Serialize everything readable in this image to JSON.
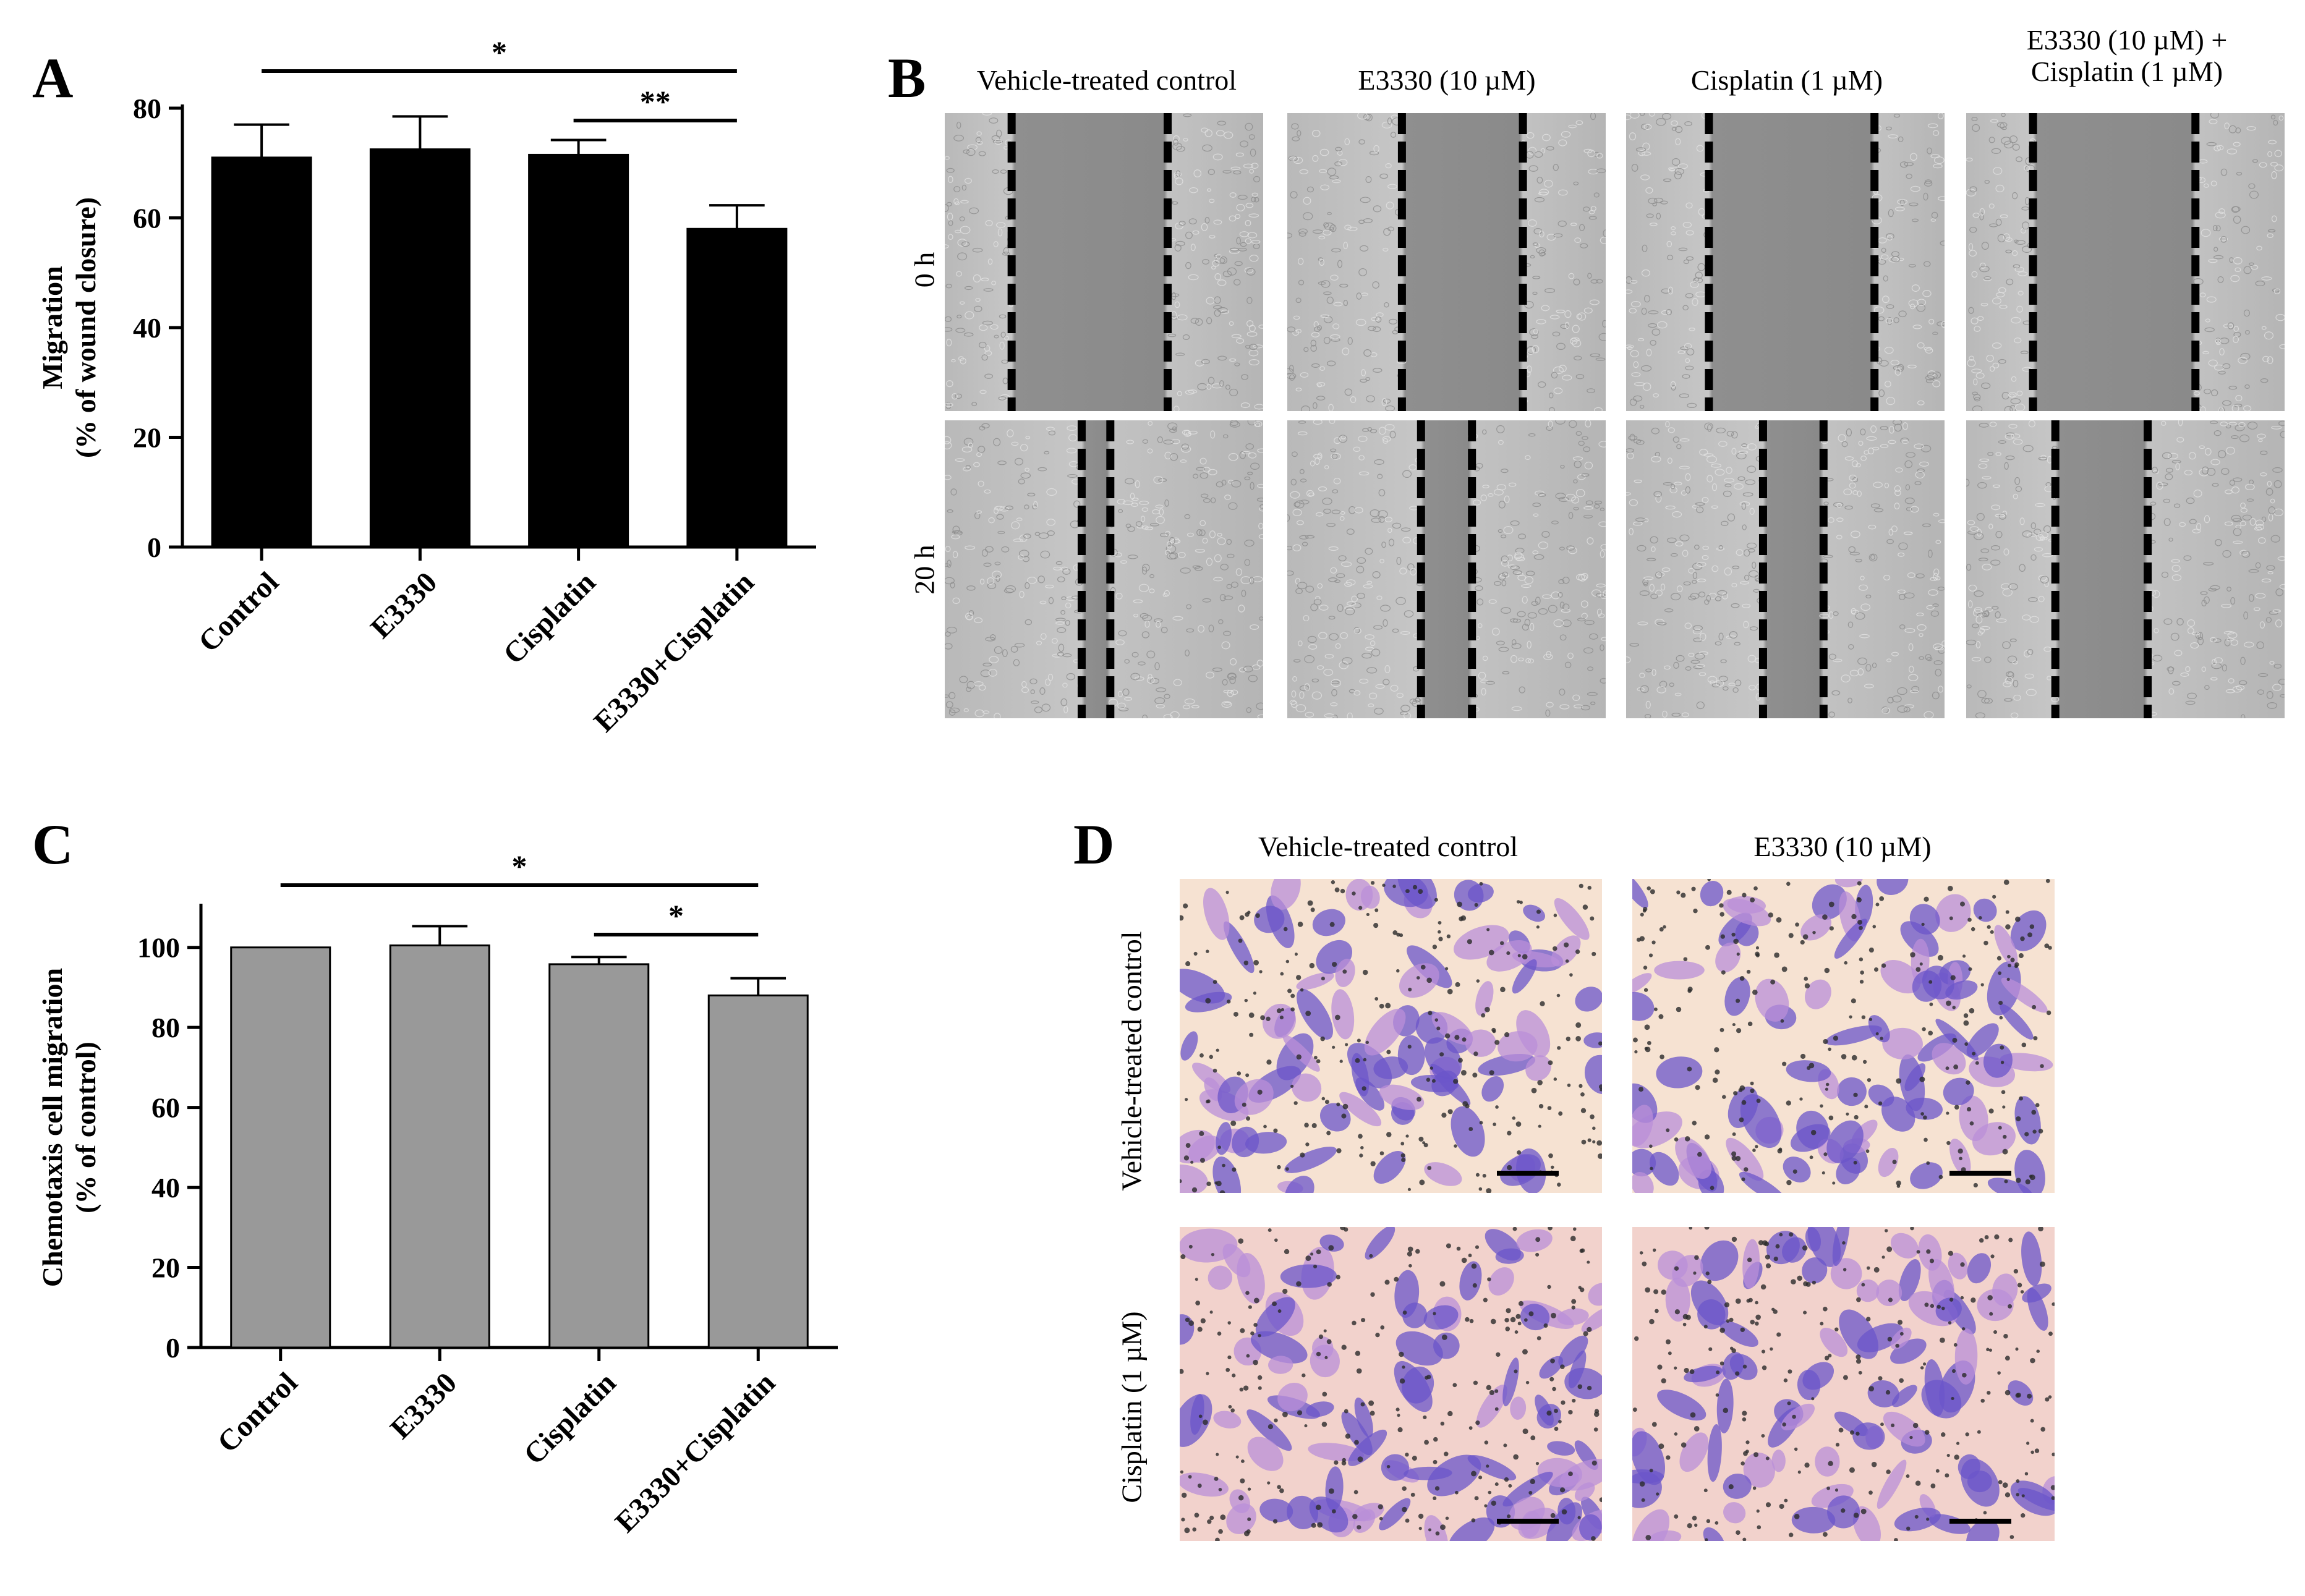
{
  "panels": {
    "A": {
      "letter": "A"
    },
    "B": {
      "letter": "B"
    },
    "C": {
      "letter": "C"
    },
    "D": {
      "letter": "D"
    }
  },
  "chart_data": [
    {
      "panel": "A",
      "type": "bar",
      "categories": [
        "Control",
        "E3330",
        "Cisplatin",
        "E3330+Cisplatin"
      ],
      "values": [
        71,
        72.5,
        71.5,
        58
      ],
      "errors": [
        6,
        6,
        2.7,
        4.3
      ],
      "ylabel_line1": "Migration",
      "ylabel_line2": "(% of wound closure)",
      "ylim": [
        0,
        80
      ],
      "yticks": [
        "0",
        "20",
        "40",
        "60",
        "80"
      ],
      "bar_color": "#000000",
      "significance": [
        {
          "from": 0,
          "to": 3,
          "label": "*"
        },
        {
          "from": 2,
          "to": 3,
          "label": "**"
        }
      ]
    },
    {
      "panel": "C",
      "type": "bar",
      "categories": [
        "Control",
        "E3330",
        "Cisplatin",
        "E3330+Cisplatin"
      ],
      "values": [
        100,
        100.5,
        95.8,
        88
      ],
      "errors": [
        0,
        4.8,
        1.8,
        4.3
      ],
      "ylabel_line1": "Chemotaxis cell migration",
      "ylabel_line2": "(% of control)",
      "ylim": [
        0,
        110
      ],
      "yticks": [
        "0",
        "20",
        "40",
        "60",
        "80",
        "100"
      ],
      "bar_color": "#999999",
      "significance": [
        {
          "from": 0,
          "to": 3,
          "label": "*"
        },
        {
          "from": 2,
          "to": 3,
          "label": "*"
        }
      ]
    }
  ],
  "panelB": {
    "conditions": [
      {
        "line1": "Vehicle-treated  control",
        "line2": ""
      },
      {
        "line1": "E3330 (10 µM)",
        "line2": ""
      },
      {
        "line1": "Cisplatin (1 µM)",
        "line2": ""
      },
      {
        "line1": "E3330 (10 µM) +",
        "line2": "Cisplatin (1 µM)"
      }
    ],
    "times": [
      "0 h",
      "20 h"
    ]
  },
  "panelD": {
    "columns": [
      "Vehicle-treated  control",
      "E3330 (10 µM)"
    ],
    "rows": [
      "Vehicle-treated  control",
      "Cisplatin  (1 µM)"
    ]
  },
  "colors": {
    "wound_gray": "#9a9a9a",
    "stain_purple": "#7b5fd0",
    "transwell_bg": "#f3dccf"
  }
}
